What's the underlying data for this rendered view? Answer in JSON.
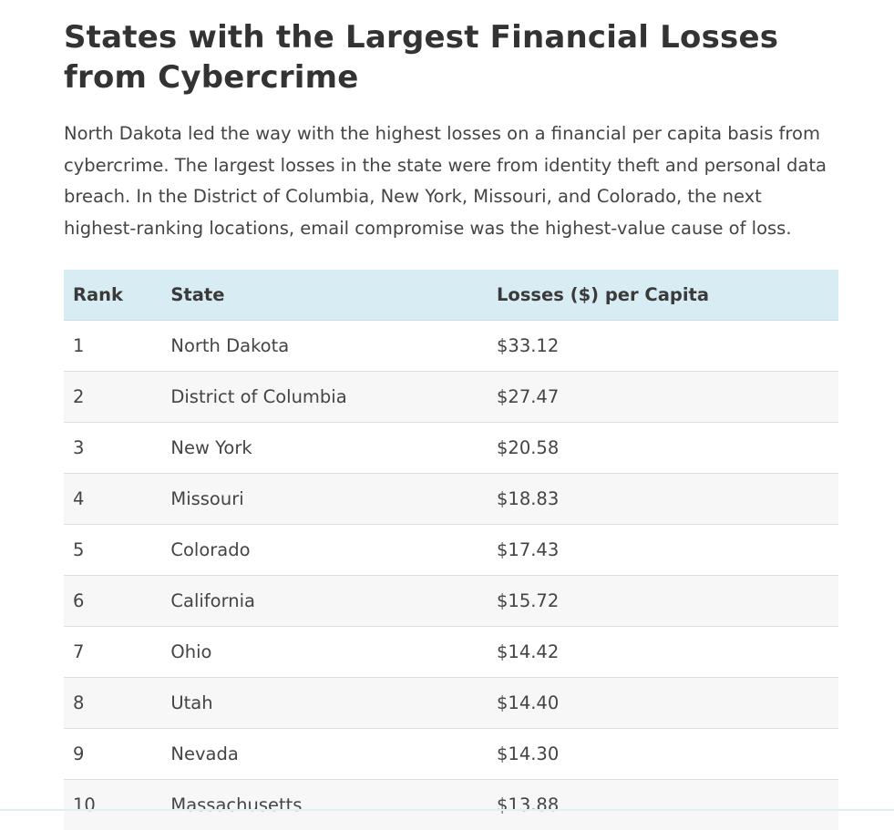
{
  "article": {
    "title": "States with the Largest Financial Losses from Cybercrime",
    "intro": "North Dakota led the way with the highest losses on a financial per capita basis from cybercrime. The largest losses in the state were from identity theft and personal data breach. In the District of Columbia, New York, Missouri, and Colorado, the next highest-ranking locations, email compromise was the highest-value cause of loss."
  },
  "table": {
    "headers": {
      "rank": "Rank",
      "state": "State",
      "losses": "Losses ($) per Capita"
    },
    "rows": [
      {
        "rank": "1",
        "state": "North Dakota",
        "losses": "$33.12"
      },
      {
        "rank": "2",
        "state": "District of Columbia",
        "losses": "$27.47"
      },
      {
        "rank": "3",
        "state": "New York",
        "losses": "$20.58"
      },
      {
        "rank": "4",
        "state": "Missouri",
        "losses": "$18.83"
      },
      {
        "rank": "5",
        "state": "Colorado",
        "losses": "$17.43"
      },
      {
        "rank": "6",
        "state": "California",
        "losses": "$15.72"
      },
      {
        "rank": "7",
        "state": "Ohio",
        "losses": "$14.42"
      },
      {
        "rank": "8",
        "state": "Utah",
        "losses": "$14.40"
      },
      {
        "rank": "9",
        "state": "Nevada",
        "losses": "$14.30"
      },
      {
        "rank": "10",
        "state": "Massachusetts",
        "losses": "$13.88"
      }
    ]
  },
  "colors": {
    "header_bg": "#d8ecf4",
    "stripe_bg": "#f7f7f7",
    "text": "#444444"
  }
}
